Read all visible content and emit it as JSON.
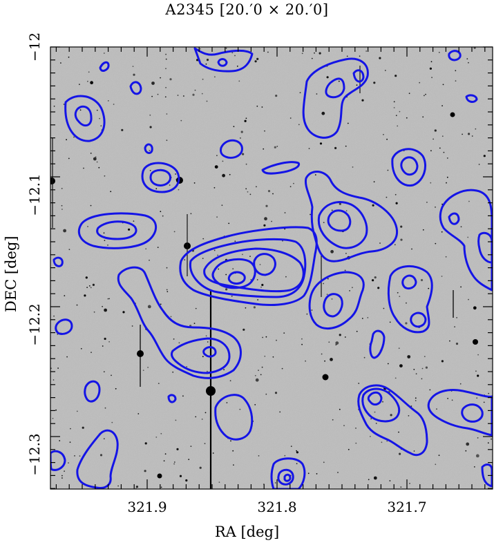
{
  "title": "A2345  [20.′0 × 20.′0]",
  "xlabel": "RA [deg]",
  "ylabel": "DEC [deg]",
  "colors": {
    "contour": "#1414e6",
    "sky": "#bdbdbd",
    "frame": "#000000"
  },
  "axes": {
    "ra_range": [
      321.982,
      321.642
    ],
    "dec_range": [
      -11.982,
      -12.322
    ],
    "ra_ticks": [
      "321.9",
      "321.8",
      "321.7"
    ],
    "dec_ticks": [
      "−12",
      "−12.1",
      "−12.2",
      "−12.3"
    ]
  }
}
